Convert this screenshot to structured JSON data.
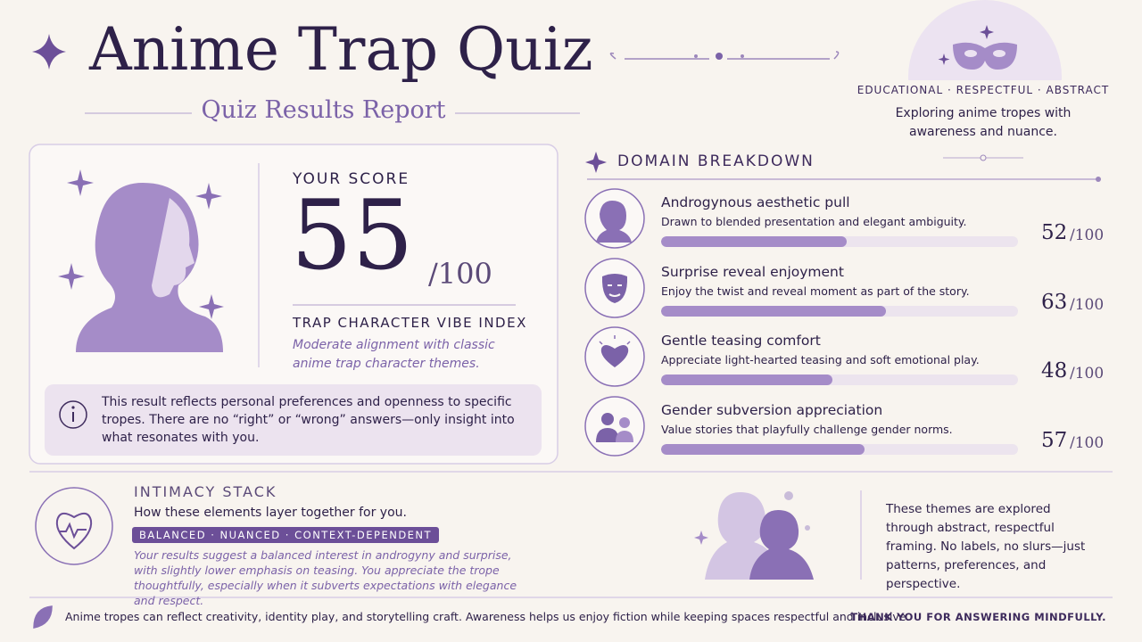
{
  "header": {
    "title": "Anime Trap Quiz",
    "subtitle": "Quiz Results Report"
  },
  "badge": {
    "tags": "EDUCATIONAL · RESPECTFUL · ABSTRACT",
    "text": "Exploring anime tropes with awareness and nuance."
  },
  "scale": {
    "max": 100,
    "label": "/100"
  },
  "score_card": {
    "label": "YOUR SCORE",
    "score": 55,
    "index_title": "TRAP CHARACTER VIBE INDEX",
    "description": "Moderate alignment with classic anime trap character themes.",
    "note": "This result reflects personal preferences and openness to specific tropes. There are no “right” or “wrong” answers—only insight into what resonates with you."
  },
  "domains": {
    "heading": "DOMAIN BREAKDOWN",
    "items": [
      {
        "name": "Androgynous aesthetic pull",
        "description": "Drawn to blended presentation and elegant ambiguity.",
        "score": 52
      },
      {
        "name": "Surprise reveal enjoyment",
        "description": "Enjoy the twist and reveal moment as part of the story.",
        "score": 63
      },
      {
        "name": "Gentle teasing comfort",
        "description": "Appreciate light-hearted teasing and soft emotional play.",
        "score": 48
      },
      {
        "name": "Gender subversion appreciation",
        "description": "Value stories that playfully challenge gender norms.",
        "score": 57
      }
    ]
  },
  "intimacy": {
    "heading": "INTIMACY STACK",
    "subtitle": "How these elements layer together for you.",
    "tag": "BALANCED · NUANCED · CONTEXT-DEPENDENT",
    "summary": "Your results suggest a balanced interest in androgyny and surprise, with slightly lower emphasis on teasing. You appreciate the trope thoughtfully, especially when it subverts expectations with elegance and respect."
  },
  "side_note": "These themes are explored through abstract, respectful framing. No labels, no slurs—just patterns, preferences, and perspective.",
  "footer": {
    "text": "Anime tropes can reflect creativity, identity play, and storytelling craft. Awareness helps us enjoy fiction while keeping spaces respectful and inclusive.",
    "thanks": "THANK YOU FOR ANSWERING MINDFULLY."
  }
}
